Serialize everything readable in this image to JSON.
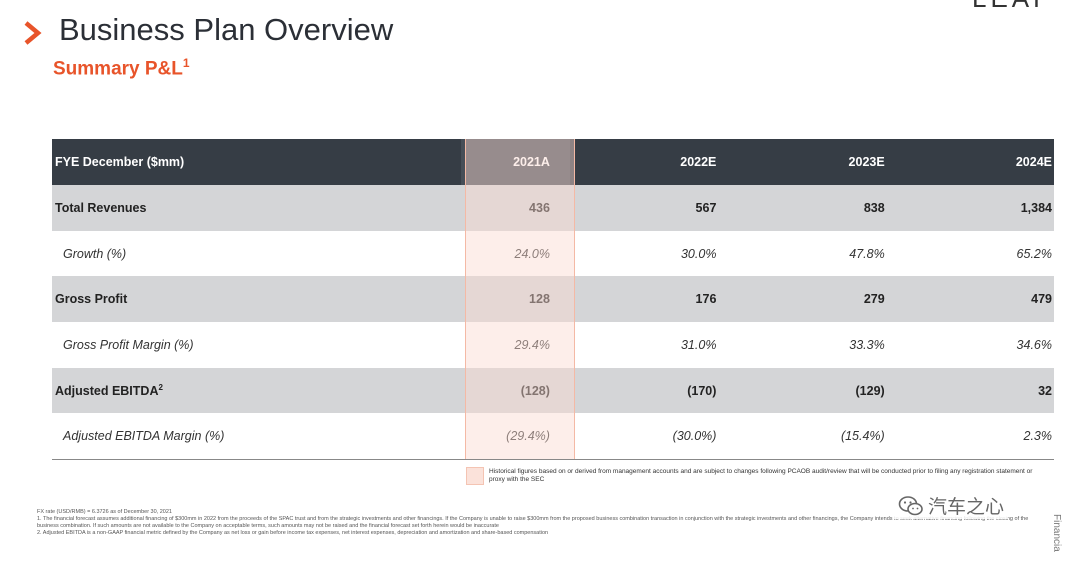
{
  "header": {
    "logo_text": "LEAP",
    "title": "Business Plan Overview",
    "subtitle": "Summary P&L",
    "subtitle_sup": "1"
  },
  "table": {
    "columns": [
      "FYE December ($mm)",
      "2021A",
      "2022E",
      "2023E",
      "2024E"
    ],
    "rows": [
      {
        "label": "Total Revenues",
        "label_sup": "",
        "values": [
          "436",
          "567",
          "838",
          "1,384"
        ]
      },
      {
        "label": "Growth (%)",
        "label_sup": "",
        "values": [
          "24.0%",
          "30.0%",
          "47.8%",
          "65.2%"
        ]
      },
      {
        "label": "Gross Profit",
        "label_sup": "",
        "values": [
          "128",
          "176",
          "279",
          "479"
        ]
      },
      {
        "label": "Gross Profit Margin (%)",
        "label_sup": "",
        "values": [
          "29.4%",
          "31.0%",
          "33.3%",
          "34.6%"
        ]
      },
      {
        "label": "Adjusted EBITDA",
        "label_sup": "2",
        "values": [
          "(128)",
          "(170)",
          "(129)",
          "32"
        ]
      },
      {
        "label": "Adjusted EBITDA Margin (%)",
        "label_sup": "",
        "values": [
          "(29.4%)",
          "(30.0%)",
          "(15.4%)",
          "2.3%"
        ]
      }
    ]
  },
  "legend": {
    "text": "Historical figures based on or derived from management accounts and are subject to changes following PCAOB audit/review that will be conducted prior to filing any registration statement or proxy with the SEC"
  },
  "footnotes": {
    "fx": "FX rate (USD/RMB) = 6.3726 as of December 30, 2021",
    "note1": "1.   The financial forecast assumes additional financing of $300mm in 2022 from the proceeds of the SPAC trust and from the strategic investments and other financings. If the Company is unable to raise $300mm from the proposed business combination transaction in conjunction with the strategic investments and other financings, the Company intends to seek alternative financing following the closing of the business combination. If such amounts are not available to the Company on acceptable terms, such amounts may not be raised and the financial forecast set forth herein would be inaccurate",
    "note2": "2.   Adjusted EBITDA is a non-GAAP financial metric defined by the Company as net loss or gain before income tax expenses, net interest expenses, depreciation and amortization and share-based compensation"
  },
  "watermark": {
    "text": "汽车之心"
  },
  "side_label": "Financia",
  "colors": {
    "accent": "#e8542a",
    "header_bg": "#363d45",
    "shaded_row": "#d4d5d7",
    "highlight": "#fbe2da"
  }
}
